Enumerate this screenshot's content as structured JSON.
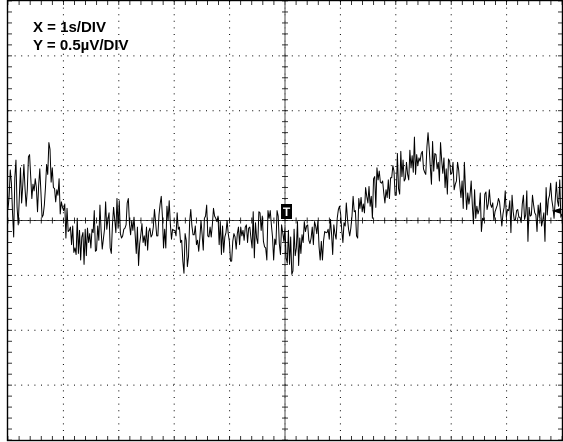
{
  "chart_data": {
    "type": "line",
    "title": "",
    "xlabel": "",
    "ylabel": "",
    "annotations": [
      "X = 1s/DIV",
      "Y = 0.5µV/DIV"
    ],
    "grid": true,
    "divisions": {
      "x": 10,
      "y": 8
    },
    "xlim": [
      -5,
      5
    ],
    "ylim": [
      -2,
      2
    ],
    "x_unit": "s",
    "y_unit": "µV",
    "trace_color": "#000000",
    "series": [
      {
        "values": [
          0.1,
          0.22,
          0.46,
          0.34,
          0.07,
          -0.15,
          0.39,
          0.55,
          0.12,
          -0.04,
          0.22,
          0.48,
          0.16,
          0.32,
          0.51,
          0.29,
          0.13,
          0.28,
          0.58,
          0.6,
          0.4,
          0.2,
          0.33,
          0.27,
          0.38,
          0.3,
          0.08,
          0.32,
          0.47,
          0.26,
          0.03,
          0.05,
          0.14,
          0.3,
          0.51,
          0.42,
          0.71,
          0.65,
          0.35,
          0.48,
          0.3,
          0.29,
          0.17,
          0.28,
          0.23,
          0.38,
          0.06,
          0.17,
          0.12,
          0.09,
          0.15,
          -0.16,
          0.11,
          -0.1,
          -0.09,
          -0.06,
          -0.22,
          -0.05,
          -0.29,
          -0.25,
          -0.31,
          0.02,
          -0.3,
          -0.09,
          -0.36,
          -0.15,
          -0.11,
          -0.4,
          -0.08,
          -0.32,
          -0.07,
          -0.2,
          -0.12,
          -0.25,
          -0.08,
          -0.11,
          0.09,
          -0.28,
          -0.27,
          -0.05,
          -0.18,
          0.14,
          -0.09,
          -0.26,
          -0.17,
          -0.08,
          0.17,
          -0.08,
          0.01,
          0.07,
          -0.25,
          -0.3,
          -0.04,
          0.12,
          0.01,
          -0.11,
          0.2,
          -0.07,
          0.18,
          -0.12,
          -0.16,
          -0.14,
          -0.08,
          -0.07,
          -0.04,
          0.16,
          0.2,
          -0.03,
          -0.13,
          0.0,
          -0.09,
          0.03,
          -0.13,
          -0.3,
          -0.06,
          -0.41,
          -0.21,
          -0.13,
          -0.03,
          -0.2,
          -0.14,
          -0.23,
          -0.06,
          -0.27,
          -0.1,
          -0.07,
          -0.15,
          -0.13,
          -0.06,
          0.1,
          -0.01,
          -0.14,
          -0.14,
          0.05,
          0.15,
          0.22,
          0.04,
          -0.25,
          -0.08,
          -0.25,
          0.13,
          0.0,
          0.18,
          -0.03,
          -0.17,
          -0.08,
          -0.09,
          -0.09,
          -0.14,
          0.07,
          -0.08,
          -0.06,
          -0.2,
          -0.18,
          -0.37,
          -0.48,
          -0.12,
          -0.18,
          -0.42,
          -0.33,
          -0.01,
          0.1,
          -0.05,
          -0.13,
          -0.13,
          -0.05,
          -0.22,
          -0.18,
          -0.28,
          -0.16,
          0.0,
          -0.13,
          -0.27,
          0.02,
          0.04,
          0.14,
          -0.14,
          -0.15,
          -0.06,
          -0.15,
          -0.04,
          0.11,
          0.04,
          0.02,
          -0.01,
          0.04,
          -0.22,
          -0.01,
          -0.31,
          -0.05,
          -0.29,
          -0.15,
          -0.11,
          0.0,
          -0.12,
          -0.19,
          -0.37,
          -0.37,
          -0.19,
          -0.12,
          -0.15,
          -0.26,
          -0.12,
          -0.06,
          -0.22,
          -0.06,
          -0.14,
          -0.09,
          -0.18,
          -0.06,
          -0.04,
          -0.2,
          -0.07,
          -0.06,
          -0.16,
          -0.25,
          0.08,
          -0.34,
          -0.02,
          -0.16,
          -0.21,
          0.08,
          0.07,
          -0.09,
          0.04,
          -0.19,
          -0.24,
          -0.25,
          -0.36,
          0.09,
          0.02,
          0.09,
          -0.04,
          -0.15,
          -0.36,
          -0.17,
          -0.22,
          0.09,
          0.04,
          -0.21,
          -0.31,
          -0.04,
          -0.11,
          -0.19,
          -0.06,
          -0.34,
          -0.39,
          -0.09,
          -0.4,
          -0.15,
          -0.49,
          -0.46,
          -0.08,
          -0.32,
          -0.25,
          -0.01,
          -0.41,
          -0.16,
          -0.3,
          -0.13,
          -0.2,
          -0.01,
          -0.1,
          -0.05,
          -0.04,
          -0.18,
          -0.21,
          -0.16,
          -0.06,
          -0.22,
          -0.01,
          -0.05,
          -0.12,
          0.0,
          -0.24,
          -0.36,
          -0.19,
          -0.36,
          -0.18,
          -0.1,
          -0.11,
          -0.11,
          -0.08,
          -0.17,
          0.01,
          -0.12,
          -0.31,
          -0.04,
          -0.12,
          -0.17,
          0.02,
          0.1,
          0.13,
          0.06,
          -0.09,
          -0.2,
          -0.02,
          -0.05,
          0.16,
          0.02,
          -0.08,
          -0.14,
          -0.07,
          0.04,
          0.22,
          0.08,
          0.09,
          -0.14,
          -0.16,
          0.2,
          0.11,
          0.21,
          0.08,
          0.15,
          0.07,
          0.3,
          0.22,
          0.16,
          0.31,
          0.13,
          0.22,
          0.02,
          0.38,
          0.4,
          0.12,
          0.48,
          0.37,
          0.45,
          0.35,
          0.34,
          0.36,
          0.25,
          0.16,
          0.28,
          0.21,
          0.37,
          0.2,
          0.39,
          0.39,
          0.5,
          0.45,
          0.23,
          0.23,
          0.61,
          0.29,
          0.24,
          0.63,
          0.4,
          0.55,
          0.36,
          0.38,
          0.53,
          0.42,
          0.37,
          0.64,
          0.48,
          0.59,
          0.44,
          0.76,
          0.42,
          0.6,
          0.5,
          0.57,
          0.54,
          0.61,
          0.63,
          0.47,
          0.44,
          0.42,
          0.67,
          0.8,
          0.66,
          0.49,
          0.33,
          0.72,
          0.45,
          0.61,
          0.6,
          0.47,
          0.53,
          0.36,
          0.71,
          0.55,
          0.43,
          0.57,
          0.3,
          0.47,
          0.24,
          0.56,
          0.54,
          0.42,
          0.43,
          0.53,
          0.28,
          0.33,
          0.36,
          0.53,
          0.46,
          0.32,
          0.21,
          0.36,
          0.11,
          0.53,
          0.29,
          0.1,
          0.25,
          0.15,
          0.23,
          0.36,
          0.14,
          -0.03,
          0.28,
          0.02,
          0.13,
          0.06,
          0.1,
          0.25,
          -0.1,
          0.02,
          0.0,
          0.24,
          0.26,
          0.1,
          0.15,
          0.28,
          0.15,
          0.12,
          0.16,
          0.0,
          0.08,
          0.11,
          0.14,
          0.2,
          0.17,
          0.06,
          -0.05,
          0.06,
          0.12,
          0.27,
          0.03,
          0.1,
          0.09,
          0.18,
          -0.11,
          0.23,
          0.08,
          0.0,
          0.01,
          0.09,
          0.1,
          0.03,
          0.03,
          -0.02,
          0.15,
          0.23,
          0.01,
          0.05,
          0.27,
          -0.19,
          0.12,
          0.04,
          0.05,
          0.23,
          0.14,
          0.07,
          0.05,
          -0.1,
          0.14,
          0.03,
          0.16,
          -0.05,
          0.0,
          0.07,
          -0.19,
          0.3,
          0.05,
          0.19,
          0.23,
          0.34,
          0.19,
          0.12,
          0.02,
          0.18,
          0.35,
          0.18,
          0.13,
          0.37,
          0.03,
          0.06
        ]
      }
    ]
  },
  "trigger_marker": {
    "symbol": "T"
  },
  "ground_marker": {
    "symbol": "◄"
  }
}
